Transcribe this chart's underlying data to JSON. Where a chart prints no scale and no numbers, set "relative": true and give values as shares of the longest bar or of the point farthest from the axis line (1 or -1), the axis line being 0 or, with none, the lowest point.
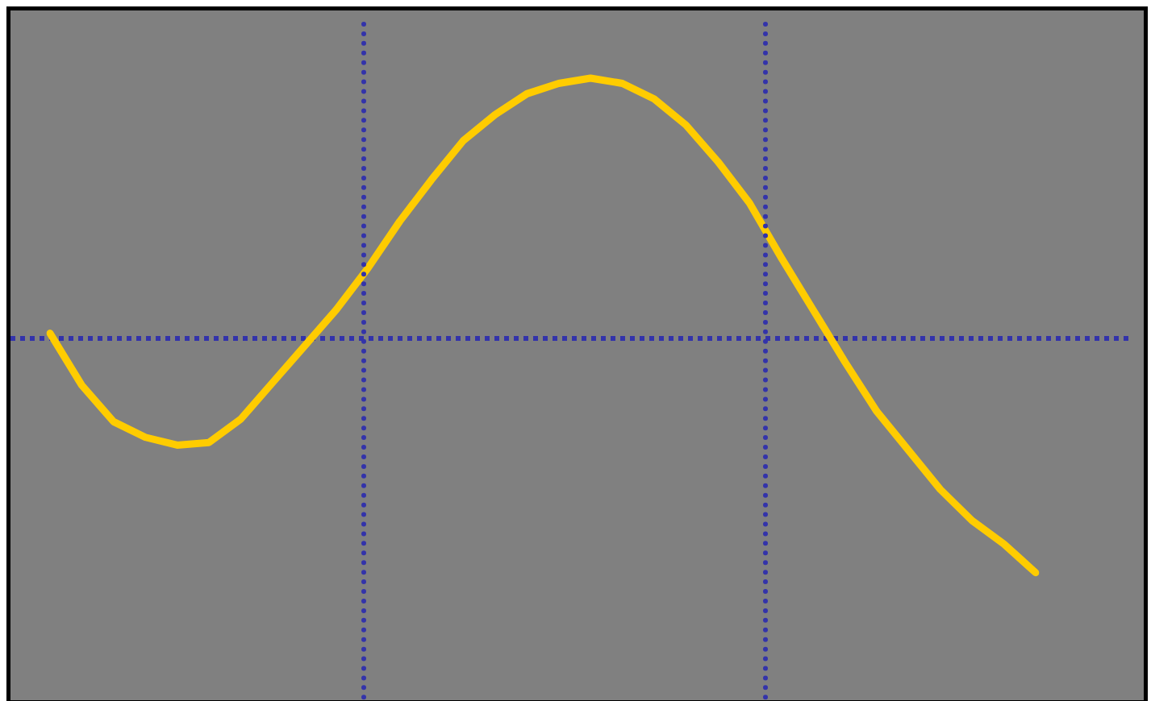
{
  "chart_data": {
    "type": "line",
    "relative": true,
    "tick_labels": false,
    "grid": false,
    "legend": false,
    "marker": "none",
    "line_style": "solid",
    "categories": [
      null,
      null,
      null,
      null,
      null,
      null,
      null,
      null,
      null,
      null,
      null,
      null,
      null,
      null,
      null,
      null,
      null,
      null,
      null,
      null,
      null,
      null,
      null,
      null,
      null,
      null,
      null,
      null,
      null,
      null,
      null,
      null
    ],
    "ref_lines": [
      {
        "axis": "y",
        "value": 0,
        "color": "#3333aa",
        "line_style": "dotted"
      }
    ],
    "series": [
      {
        "color": "#ffcc00",
        "values": [
          0.02,
          -0.18,
          -0.32,
          -0.38,
          -0.41,
          -0.4,
          -0.31,
          -0.17,
          -0.03,
          0.11,
          0.27,
          0.45,
          0.61,
          0.76,
          0.86,
          0.94,
          0.98,
          1,
          0.98,
          0.92,
          0.82,
          0.68,
          0.52,
          0.31,
          0.11,
          -0.09,
          -0.28,
          -0.43,
          -0.58,
          -0.7,
          -0.79,
          -0.9
        ]
      }
    ]
  }
}
